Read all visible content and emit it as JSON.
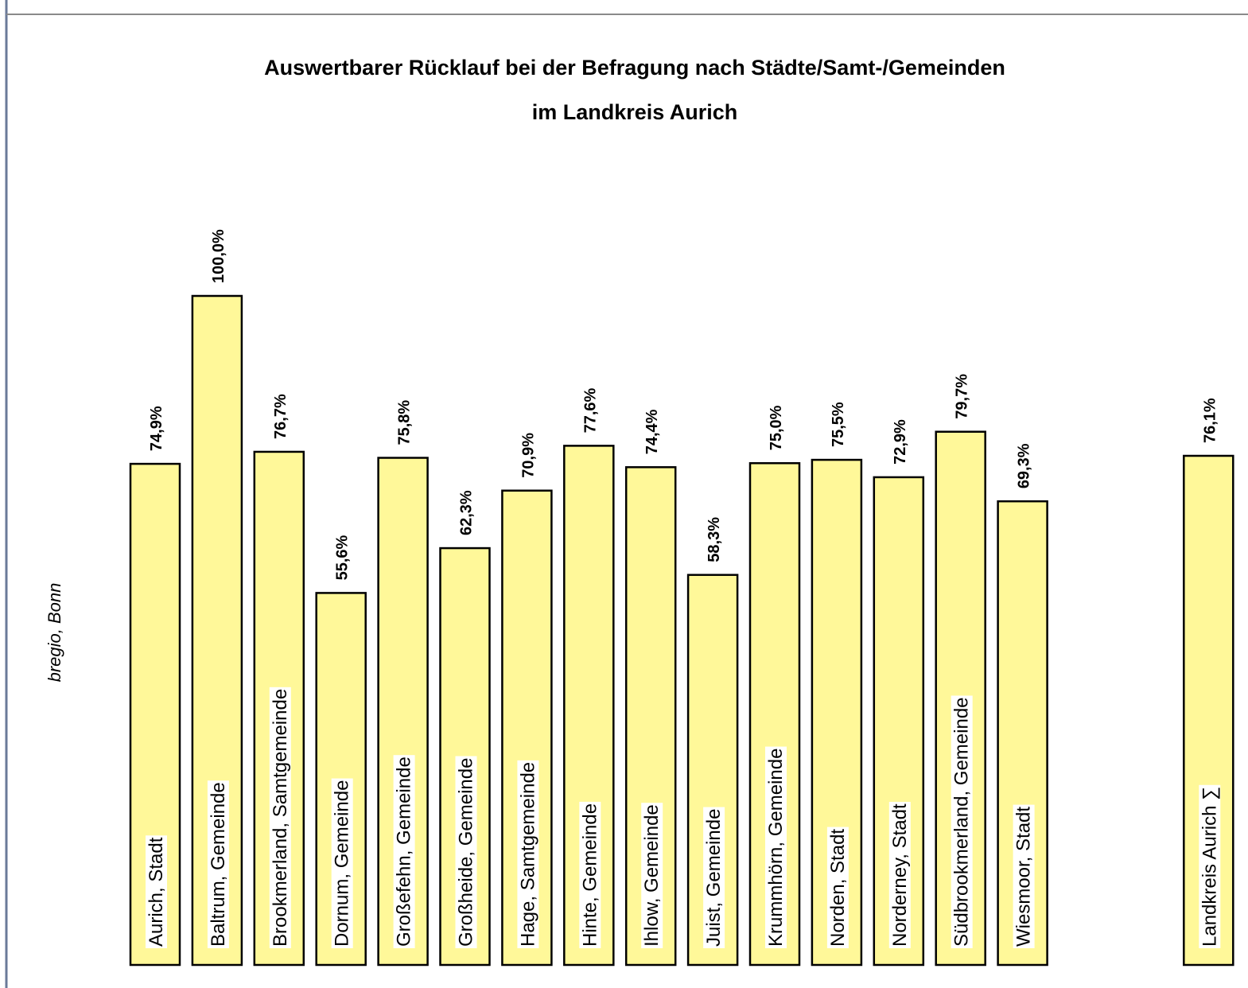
{
  "chart_data": {
    "type": "bar",
    "title": "Auswertbarer Rücklauf bei der Befragung nach Städte/Samt-/Gemeinden",
    "subtitle": "im Landkreis Aurich",
    "source": "bregio, Bonn",
    "categories": [
      "Aurich, Stadt",
      "Baltrum, Gemeinde",
      "Brookmerland, Samtgemeinde",
      "Dornum, Gemeinde",
      "Großefehn, Gemeinde",
      "Großheide, Gemeinde",
      "Hage, Samtgemeinde",
      "Hinte, Gemeinde",
      "Ihlow, Gemeinde",
      "Juist, Gemeinde",
      "Krummhörn, Gemeinde",
      "Norden, Stadt",
      "Norderney, Stadt",
      "Südbrookmerland, Gemeinde",
      "Wiesmoor, Stadt",
      null,
      null,
      "Landkreis Aurich ∑"
    ],
    "values": [
      74.9,
      100,
      76.7,
      55.6,
      75.8,
      62.3,
      70.9,
      77.6,
      74.4,
      58.3,
      75.0,
      75.5,
      72.9,
      79.7,
      69.3,
      null,
      null,
      76.1
    ],
    "value_labels": [
      "74,9%",
      "100,0%",
      "76,7%",
      "55,6%",
      "75,8%",
      "62,3%",
      "70,9%",
      "77,6%",
      "74,4%",
      "58,3%",
      "75,0%",
      "75,5%",
      "72,9%",
      "79,7%",
      "69,3%",
      null,
      null,
      "76,1%"
    ],
    "color": "#fff899",
    "ylim": [
      0,
      100
    ]
  }
}
